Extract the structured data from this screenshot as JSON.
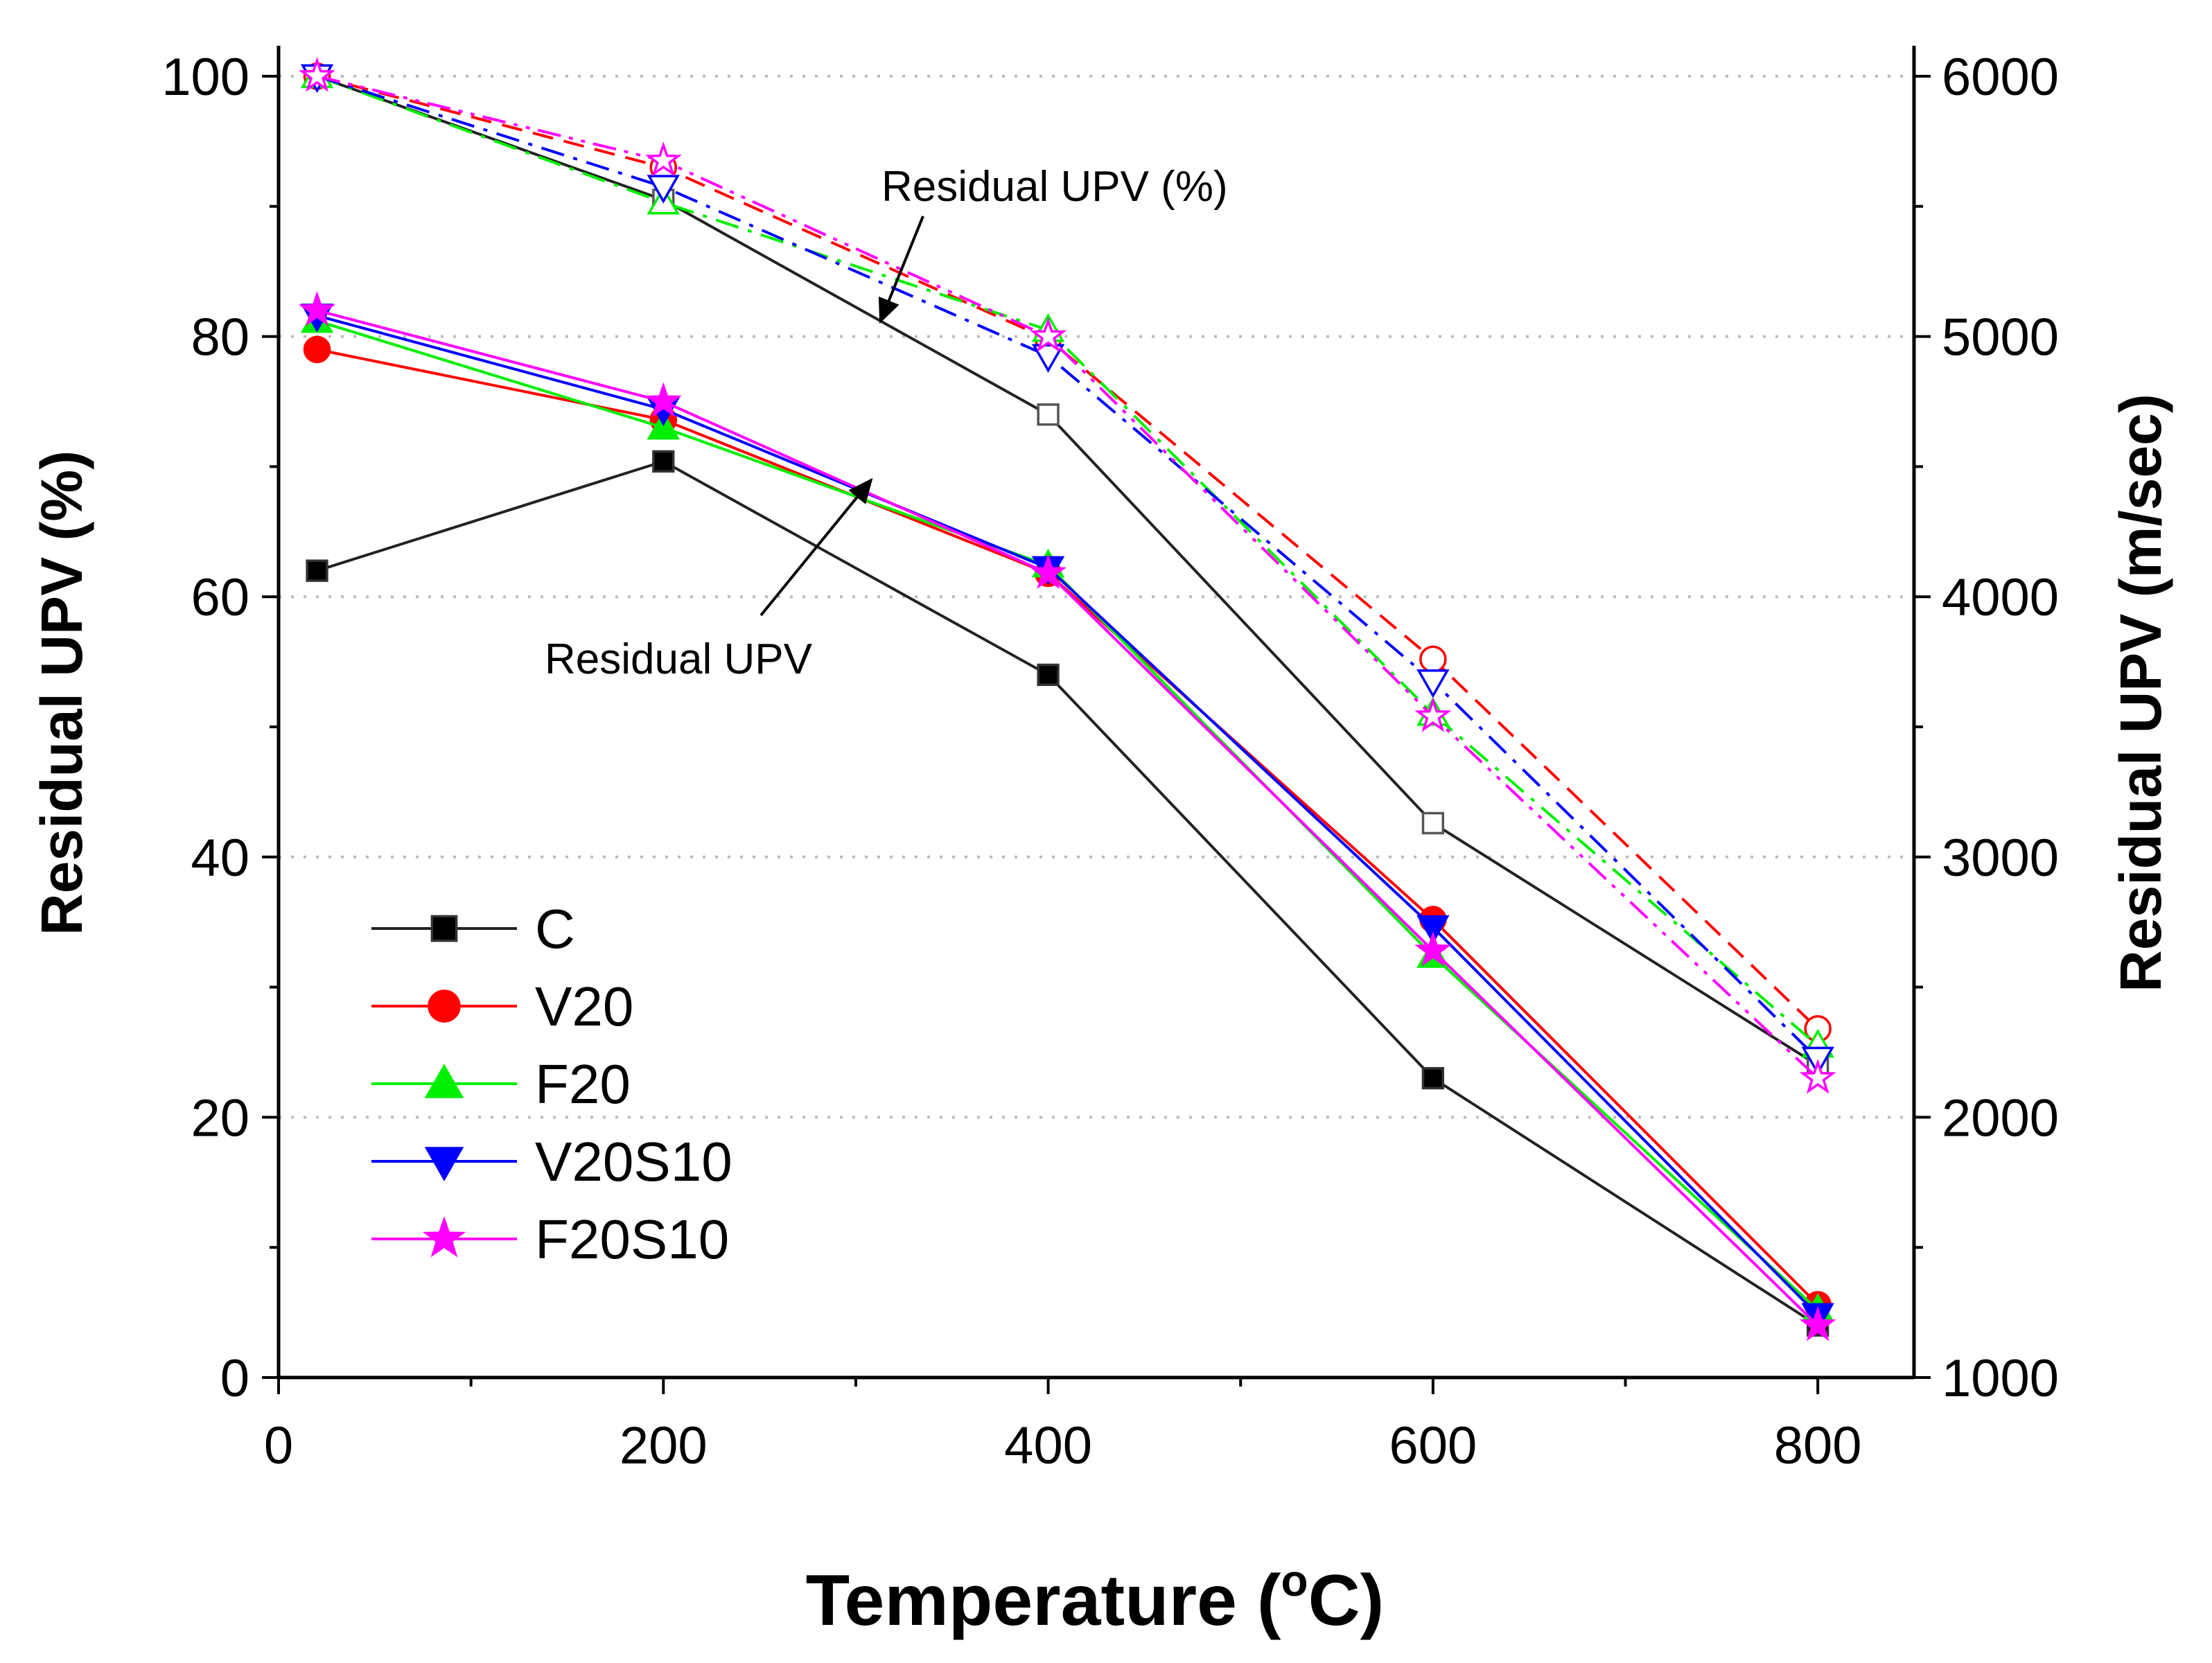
{
  "chart_data": {
    "type": "line",
    "xlabel": "Temperature (°C)",
    "xlabel_main": "Temperature (",
    "xlabel_sup": "o",
    "xlabel_end": "C)",
    "ylabel_left": "Residual UPV (%)",
    "ylabel_right": "Residual UPV (m/sec)",
    "xlim": [
      0,
      850
    ],
    "ylim_left": [
      0,
      100
    ],
    "ylim_right": [
      1000,
      6000
    ],
    "x_ticks": [
      0,
      200,
      400,
      600,
      800
    ],
    "y_left_ticks": [
      0,
      20,
      40,
      60,
      80,
      100
    ],
    "y_right_ticks": [
      1000,
      2000,
      3000,
      4000,
      5000,
      6000
    ],
    "grid": "horizontal dotted",
    "legend_position": "lower-left",
    "x": [
      20,
      200,
      400,
      600,
      800
    ],
    "series_upv": [
      {
        "name": "C",
        "color": "#000000",
        "marker": "square",
        "values": [
          4100,
          4520,
          3700,
          2150,
          1200
        ]
      },
      {
        "name": "V20",
        "color": "#ff0000",
        "marker": "circle",
        "values": [
          4950,
          4680,
          4090,
          2760,
          1280
        ]
      },
      {
        "name": "F20",
        "color": "#00ee00",
        "marker": "triangle-up",
        "values": [
          5060,
          4650,
          4120,
          2620,
          1260
        ]
      },
      {
        "name": "V20S10",
        "color": "#0000ff",
        "marker": "triangle-down",
        "values": [
          5080,
          4720,
          4110,
          2730,
          1240
        ]
      },
      {
        "name": "F20S10",
        "color": "#ff00ff",
        "marker": "star",
        "values": [
          5100,
          4750,
          4090,
          2640,
          1200
        ]
      }
    ],
    "series_percent": [
      {
        "name": "C",
        "color": "#000000",
        "marker": "square",
        "dash": "solid",
        "values": [
          100,
          90.5,
          74,
          42.6,
          24
        ]
      },
      {
        "name": "V20",
        "color": "#ff0000",
        "marker": "circle",
        "dash": "dashed",
        "values": [
          100,
          93,
          79.8,
          55.2,
          26.8
        ]
      },
      {
        "name": "F20",
        "color": "#00ee00",
        "marker": "triangle-up",
        "dash": "dashdot",
        "values": [
          100,
          90.3,
          80.5,
          51,
          25.5
        ]
      },
      {
        "name": "V20S10",
        "color": "#0000ff",
        "marker": "triangle-down",
        "dash": "dashdot",
        "values": [
          100,
          91.5,
          78.5,
          53.5,
          24.5
        ]
      },
      {
        "name": "F20S10",
        "color": "#ff00ff",
        "marker": "star",
        "dash": "dashdotdot",
        "values": [
          100,
          93.5,
          80,
          50.8,
          23
        ]
      }
    ],
    "annotations": [
      {
        "text": "Residual UPV (%)",
        "x": 320,
        "y": 82.5,
        "points_to": [
          310,
          81.5
        ]
      },
      {
        "text": "Residual UPV",
        "x": 250,
        "y": 59,
        "points_to": [
          300,
          69.5
        ]
      }
    ]
  }
}
